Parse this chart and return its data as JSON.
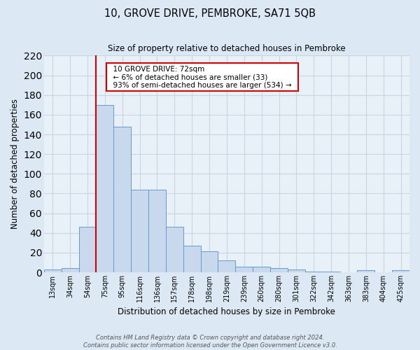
{
  "title": "10, GROVE DRIVE, PEMBROKE, SA71 5QB",
  "subtitle": "Size of property relative to detached houses in Pembroke",
  "xlabel": "Distribution of detached houses by size in Pembroke",
  "ylabel": "Number of detached properties",
  "bar_color": "#c8d9ee",
  "bar_edge_color": "#6699cc",
  "background_color": "#dce9f5",
  "plot_bg_color": "#e8f0f8",
  "grid_color": "#c8d4e0",
  "categories": [
    "13sqm",
    "34sqm",
    "54sqm",
    "75sqm",
    "95sqm",
    "116sqm",
    "136sqm",
    "157sqm",
    "178sqm",
    "198sqm",
    "219sqm",
    "239sqm",
    "260sqm",
    "280sqm",
    "301sqm",
    "322sqm",
    "342sqm",
    "363sqm",
    "383sqm",
    "404sqm",
    "425sqm"
  ],
  "values": [
    3,
    4,
    46,
    170,
    148,
    84,
    84,
    46,
    27,
    21,
    12,
    6,
    6,
    4,
    3,
    1,
    1,
    0,
    2,
    0,
    2
  ],
  "ylim": [
    0,
    220
  ],
  "yticks": [
    0,
    20,
    40,
    60,
    80,
    100,
    120,
    140,
    160,
    180,
    200,
    220
  ],
  "vline_index": 2.5,
  "vline_color": "#cc0000",
  "annotation_title": "10 GROVE DRIVE: 72sqm",
  "annotation_line1": "← 6% of detached houses are smaller (33)",
  "annotation_line2": "93% of semi-detached houses are larger (534) →",
  "annotation_box_color": "#ffffff",
  "annotation_box_edge_color": "#cc0000",
  "footnote1": "Contains HM Land Registry data © Crown copyright and database right 2024.",
  "footnote2": "Contains public sector information licensed under the Open Government Licence v3.0."
}
